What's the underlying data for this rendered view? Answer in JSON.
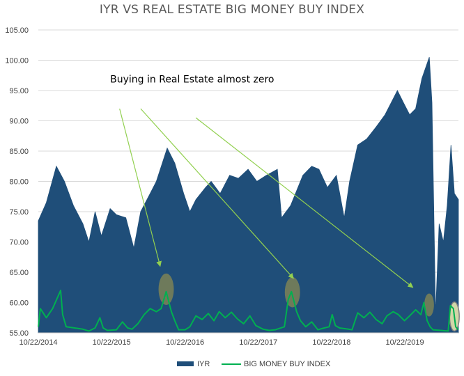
{
  "chart_data": {
    "type": "area",
    "title": "IYR VS REAL ESTATE BIG MONEY BUY INDEX",
    "annotation": "Buying in Real Estate almost zero",
    "ylim": [
      55,
      105
    ],
    "y_ticks": [
      "105.00",
      "100.00",
      "95.00",
      "90.00",
      "85.00",
      "80.00",
      "75.00",
      "70.00",
      "65.00",
      "60.00",
      "55.00"
    ],
    "x_range": [
      "2014-10-22",
      "2020-07-15"
    ],
    "x_ticks": [
      {
        "date": "2014-10-22",
        "label": "10/22/2014"
      },
      {
        "date": "2015-10-22",
        "label": "10/22/2015"
      },
      {
        "date": "2016-10-22",
        "label": "10/22/2016"
      },
      {
        "date": "2017-10-22",
        "label": "10/22/2017"
      },
      {
        "date": "2018-10-22",
        "label": "10/22/2018"
      },
      {
        "date": "2019-10-22",
        "label": "10/22/2019"
      }
    ],
    "colors": {
      "iyr": "#1f4e79",
      "bmbi": "#00b050",
      "arrow": "#92d050",
      "circle": "#8a8a52",
      "circle_last": "#f2eeb0"
    },
    "series": [
      {
        "name": "IYR",
        "style": "area",
        "points": [
          [
            "2014-10-22",
            73.5
          ],
          [
            "2014-12-01",
            76.5
          ],
          [
            "2015-01-20",
            82.5
          ],
          [
            "2015-03-01",
            80
          ],
          [
            "2015-04-15",
            76
          ],
          [
            "2015-06-01",
            73
          ],
          [
            "2015-07-01",
            70
          ],
          [
            "2015-08-01",
            75
          ],
          [
            "2015-09-01",
            71
          ],
          [
            "2015-10-15",
            75.5
          ],
          [
            "2015-11-15",
            74.5
          ],
          [
            "2016-01-01",
            74
          ],
          [
            "2016-02-10",
            69
          ],
          [
            "2016-03-15",
            75
          ],
          [
            "2016-05-01",
            78
          ],
          [
            "2016-06-01",
            80
          ],
          [
            "2016-07-25",
            85.5
          ],
          [
            "2016-09-01",
            83
          ],
          [
            "2016-10-15",
            78
          ],
          [
            "2016-11-15",
            75
          ],
          [
            "2016-12-15",
            77
          ],
          [
            "2017-02-01",
            79
          ],
          [
            "2017-03-01",
            80
          ],
          [
            "2017-04-15",
            78
          ],
          [
            "2017-06-01",
            81
          ],
          [
            "2017-07-15",
            80.5
          ],
          [
            "2017-09-01",
            82
          ],
          [
            "2017-10-15",
            80
          ],
          [
            "2017-12-01",
            81
          ],
          [
            "2018-01-25",
            82
          ],
          [
            "2018-02-15",
            74
          ],
          [
            "2018-04-01",
            76
          ],
          [
            "2018-06-01",
            81
          ],
          [
            "2018-07-15",
            82.5
          ],
          [
            "2018-08-20",
            82
          ],
          [
            "2018-10-01",
            79
          ],
          [
            "2018-11-15",
            81
          ],
          [
            "2018-12-24",
            74
          ],
          [
            "2019-01-20",
            80
          ],
          [
            "2019-03-01",
            86
          ],
          [
            "2019-04-15",
            87
          ],
          [
            "2019-06-01",
            89
          ],
          [
            "2019-07-15",
            91
          ],
          [
            "2019-08-15",
            93
          ],
          [
            "2019-09-15",
            95
          ],
          [
            "2019-10-15",
            93
          ],
          [
            "2019-11-15",
            91
          ],
          [
            "2019-12-15",
            92
          ],
          [
            "2020-01-15",
            97
          ],
          [
            "2020-02-21",
            100.5
          ],
          [
            "2020-03-05",
            93
          ],
          [
            "2020-03-23",
            58
          ],
          [
            "2020-04-10",
            73
          ],
          [
            "2020-05-01",
            70
          ],
          [
            "2020-05-20",
            76
          ],
          [
            "2020-06-08",
            86
          ],
          [
            "2020-06-25",
            78
          ],
          [
            "2020-07-15",
            77
          ]
        ]
      },
      {
        "name": "BIG MONEY BUY INDEX",
        "style": "line",
        "points": [
          [
            "2014-10-22",
            56
          ],
          [
            "2014-11-01",
            59
          ],
          [
            "2014-12-01",
            57.5
          ],
          [
            "2015-01-01",
            59
          ],
          [
            "2015-02-10",
            62
          ],
          [
            "2015-02-20",
            58
          ],
          [
            "2015-03-10",
            56
          ],
          [
            "2015-06-01",
            55.6
          ],
          [
            "2015-07-01",
            55.3
          ],
          [
            "2015-08-01",
            55.8
          ],
          [
            "2015-08-25",
            57.5
          ],
          [
            "2015-09-10",
            55.8
          ],
          [
            "2015-10-01",
            55.4
          ],
          [
            "2015-11-15",
            55.5
          ],
          [
            "2015-12-15",
            56.8
          ],
          [
            "2016-01-10",
            55.8
          ],
          [
            "2016-02-01",
            55.6
          ],
          [
            "2016-03-01",
            56.5
          ],
          [
            "2016-04-01",
            58
          ],
          [
            "2016-05-01",
            59
          ],
          [
            "2016-06-01",
            58.5
          ],
          [
            "2016-06-25",
            59
          ],
          [
            "2016-07-20",
            61.8
          ],
          [
            "2016-08-15",
            58.5
          ],
          [
            "2016-09-01",
            57
          ],
          [
            "2016-09-20",
            55.5
          ],
          [
            "2016-10-22",
            55.5
          ],
          [
            "2016-11-15",
            56
          ],
          [
            "2016-12-15",
            57.8
          ],
          [
            "2017-01-15",
            57.2
          ],
          [
            "2017-02-15",
            58.2
          ],
          [
            "2017-03-15",
            57
          ],
          [
            "2017-04-10",
            58.5
          ],
          [
            "2017-05-10",
            57.5
          ],
          [
            "2017-06-10",
            58.4
          ],
          [
            "2017-07-10",
            57.3
          ],
          [
            "2017-08-10",
            56.5
          ],
          [
            "2017-09-10",
            57.8
          ],
          [
            "2017-10-10",
            56.2
          ],
          [
            "2017-11-15",
            55.6
          ],
          [
            "2017-12-15",
            55.4
          ],
          [
            "2018-01-15",
            55.5
          ],
          [
            "2018-03-01",
            56
          ],
          [
            "2018-03-20",
            60.5
          ],
          [
            "2018-04-05",
            61.8
          ],
          [
            "2018-05-01",
            58.5
          ],
          [
            "2018-05-20",
            57
          ],
          [
            "2018-06-15",
            56
          ],
          [
            "2018-07-15",
            56.8
          ],
          [
            "2018-08-15",
            55.5
          ],
          [
            "2018-09-15",
            55.8
          ],
          [
            "2018-10-10",
            56
          ],
          [
            "2018-10-25",
            58
          ],
          [
            "2018-11-10",
            56.2
          ],
          [
            "2018-12-01",
            55.8
          ],
          [
            "2019-01-15",
            55.6
          ],
          [
            "2019-02-01",
            55.5
          ],
          [
            "2019-03-01",
            58.3
          ],
          [
            "2019-04-01",
            57.5
          ],
          [
            "2019-05-01",
            58.4
          ],
          [
            "2019-06-01",
            57.2
          ],
          [
            "2019-07-01",
            56.5
          ],
          [
            "2019-07-25",
            57.8
          ],
          [
            "2019-08-25",
            58.5
          ],
          [
            "2019-09-20",
            58
          ],
          [
            "2019-10-20",
            57
          ],
          [
            "2019-11-15",
            57.8
          ],
          [
            "2019-12-15",
            58.8
          ],
          [
            "2020-01-10",
            58
          ],
          [
            "2020-01-25",
            60
          ],
          [
            "2020-02-10",
            57
          ],
          [
            "2020-02-25",
            56
          ],
          [
            "2020-03-10",
            55.5
          ],
          [
            "2020-05-25",
            55.3
          ],
          [
            "2020-06-05",
            59.5
          ],
          [
            "2020-06-20",
            59
          ],
          [
            "2020-07-01",
            56
          ],
          [
            "2020-07-15",
            55.5
          ]
        ]
      }
    ],
    "arrows": [
      {
        "from": [
          "2015-12-01",
          92
        ],
        "to": [
          "2016-06-20",
          66
        ]
      },
      {
        "from": [
          "2016-03-15",
          92
        ],
        "to": [
          "2018-04-15",
          64
        ]
      },
      {
        "from": [
          "2016-12-15",
          90.5
        ],
        "to": [
          "2019-12-01",
          62.5
        ]
      }
    ],
    "circles": [
      {
        "center": [
          "2016-07-20",
          62.2
        ],
        "rx_days": 38,
        "ry_value": 2.6
      },
      {
        "center": [
          "2018-04-10",
          61.7
        ],
        "rx_days": 38,
        "ry_value": 2.5
      },
      {
        "center": [
          "2020-02-20",
          59.6
        ],
        "rx_days": 24,
        "ry_value": 1.9
      },
      {
        "center": [
          "2020-06-25",
          57.7
        ],
        "rx_days": 24,
        "ry_value": 2.4,
        "highlight": true
      }
    ],
    "legend": {
      "position": "bottom"
    }
  }
}
